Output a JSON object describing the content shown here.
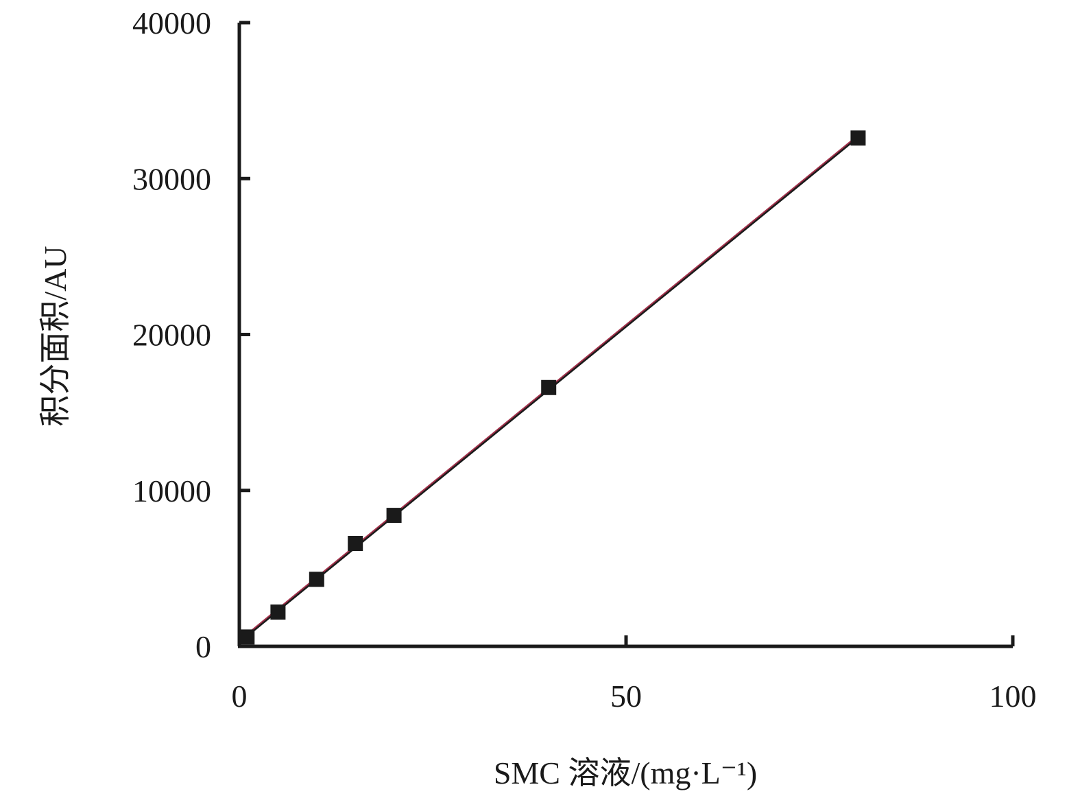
{
  "chart_data": {
    "type": "scatter",
    "title": "",
    "xlabel": "SMC 溶液/(mg·L⁻¹)",
    "ylabel": "积分面积/AU",
    "xlim": [
      0,
      100
    ],
    "ylim": [
      0,
      40000
    ],
    "x_ticks": [
      "0",
      "50",
      "100"
    ],
    "y_ticks": [
      "0",
      "10000",
      "20000",
      "30000",
      "40000"
    ],
    "grid": false,
    "legend": "none",
    "series": [
      {
        "marker": "square",
        "color": "#1a1a1a",
        "points": [
          {
            "x": 1,
            "y": 600
          },
          {
            "x": 5,
            "y": 2200
          },
          {
            "x": 10,
            "y": 4300
          },
          {
            "x": 15,
            "y": 6600
          },
          {
            "x": 20,
            "y": 8400
          },
          {
            "x": 40,
            "y": 16600
          },
          {
            "x": 80,
            "y": 32600
          }
        ]
      }
    ],
    "fit_line": {
      "color_main": "#1a1a1a",
      "color_overlay": "#a0304a",
      "x_start": 0.3,
      "x_end": 80
    }
  }
}
